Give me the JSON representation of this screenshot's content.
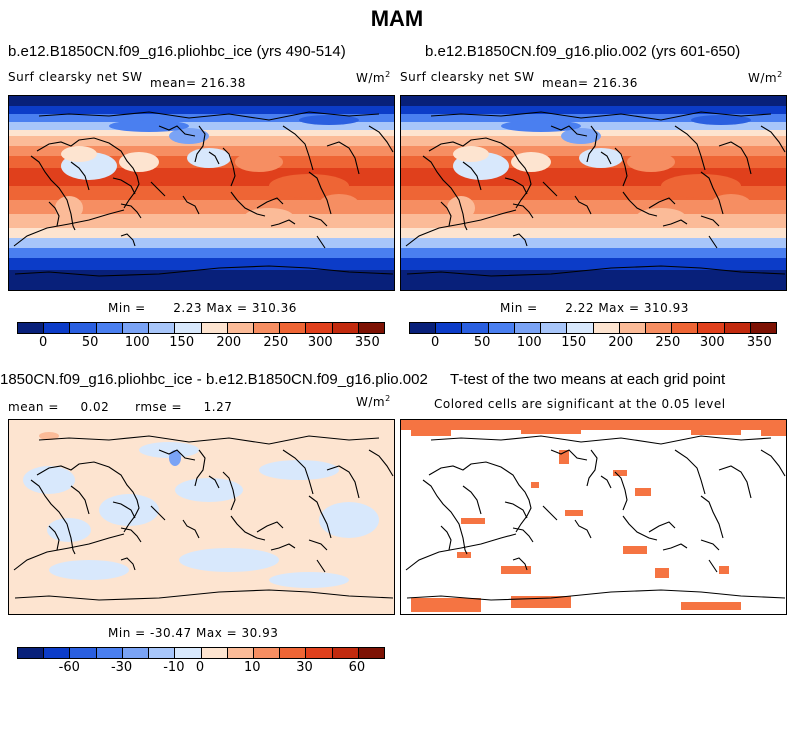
{
  "figure_title": "MAM",
  "colors": {
    "abs_scale": [
      "#08207a",
      "#0c3cc8",
      "#2a5fe0",
      "#4a7ff0",
      "#7aa3f5",
      "#a8c6fa",
      "#d8e8fc",
      "#fde4d0",
      "#fbbb98",
      "#f68e62",
      "#ee6535",
      "#e0401c",
      "#c22a0e",
      "#7d1204"
    ],
    "diff_scale": [
      "#08207a",
      "#0c3cc8",
      "#2a5fe0",
      "#4a7ff0",
      "#7aa3f5",
      "#a8c6fa",
      "#d8e8fc",
      "#fde4d0",
      "#fbbb98",
      "#f68e62",
      "#ee6535",
      "#e0401c",
      "#c22a0e",
      "#7d1204"
    ],
    "sig_cell": "#f57442"
  },
  "chart_data": [
    {
      "type": "heatmap",
      "panel": "top-left",
      "title": "b.e12.B1850CN.f09_g16.pliohbc_ice (yrs 490-514)",
      "variable": "Surf clearsky net SW",
      "mean_label": "mean=",
      "mean": "216.38",
      "units_base": "W/m",
      "units_exp": "2",
      "min_label": "Min =",
      "min": "2.23",
      "max_label": "Max =",
      "max": "310.36",
      "colorbar_ticks": [
        "0",
        "50",
        "100",
        "150",
        "200",
        "250",
        "300",
        "350"
      ]
    },
    {
      "type": "heatmap",
      "panel": "top-right",
      "title": "b.e12.B1850CN.f09_g16.plio.002 (yrs 601-650)",
      "variable": "Surf clearsky net SW",
      "mean_label": "mean=",
      "mean": "216.36",
      "units_base": "W/m",
      "units_exp": "2",
      "min_label": "Min =",
      "min": "2.22",
      "max_label": "Max =",
      "max": "310.93",
      "colorbar_ticks": [
        "0",
        "50",
        "100",
        "150",
        "200",
        "250",
        "300",
        "350"
      ]
    },
    {
      "type": "heatmap",
      "panel": "bottom-left",
      "title": "1850CN.f09_g16.pliohbc_ice - b.e12.B1850CN.f09_g16.plio.002",
      "mean_label": "mean =",
      "mean": "0.02",
      "rmse_label": "rmse =",
      "rmse": "1.27",
      "units_base": "W/m",
      "units_exp": "2",
      "min_label": "Min =",
      "min": "-30.47",
      "max_label": "Max =",
      "max": "30.93",
      "colorbar_ticks": [
        "-60",
        "-30",
        "-10",
        "0",
        "10",
        "30",
        "60"
      ]
    },
    {
      "type": "heatmap",
      "panel": "bottom-right",
      "title": "T-test of the two means at each grid point",
      "subtitle": "Colored cells are significant at the 0.05 level"
    }
  ]
}
